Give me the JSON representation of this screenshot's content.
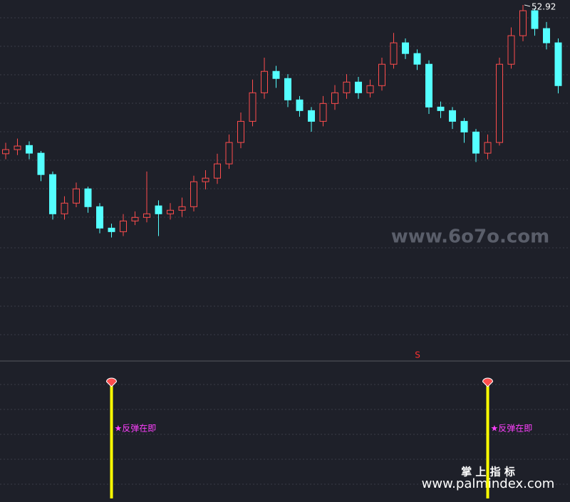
{
  "chart_data": {
    "type": "candlestick",
    "candles": [
      [
        47.5,
        47.9,
        47.3,
        47.65
      ],
      [
        47.65,
        48.05,
        47.45,
        47.78
      ],
      [
        47.8,
        47.95,
        47.3,
        47.52
      ],
      [
        47.52,
        47.6,
        46.5,
        46.74
      ],
      [
        46.74,
        46.85,
        45.1,
        45.31
      ],
      [
        45.31,
        45.95,
        45.1,
        45.7
      ],
      [
        45.7,
        46.45,
        45.55,
        46.22
      ],
      [
        46.22,
        46.3,
        45.35,
        45.57
      ],
      [
        45.57,
        45.7,
        44.6,
        44.79
      ],
      [
        44.79,
        44.95,
        44.45,
        44.66
      ],
      [
        44.66,
        45.3,
        44.5,
        45.05
      ],
      [
        45.05,
        45.4,
        44.9,
        45.18
      ],
      [
        45.18,
        46.85,
        45.0,
        45.31
      ],
      [
        45.6,
        45.8,
        44.5,
        45.31
      ],
      [
        45.31,
        45.7,
        45.1,
        45.44
      ],
      [
        45.44,
        45.9,
        45.2,
        45.57
      ],
      [
        45.57,
        46.7,
        45.4,
        46.48
      ],
      [
        46.48,
        46.9,
        46.2,
        46.61
      ],
      [
        46.61,
        47.5,
        46.4,
        47.13
      ],
      [
        47.13,
        48.2,
        46.95,
        47.91
      ],
      [
        47.91,
        49.0,
        47.7,
        48.68
      ],
      [
        48.68,
        50.2,
        48.5,
        49.72
      ],
      [
        49.72,
        51.0,
        49.5,
        50.5
      ],
      [
        50.5,
        50.7,
        49.9,
        50.24
      ],
      [
        50.24,
        50.4,
        49.2,
        49.46
      ],
      [
        49.46,
        49.6,
        48.85,
        49.07
      ],
      [
        49.07,
        49.2,
        48.3,
        48.68
      ],
      [
        48.68,
        49.6,
        48.5,
        49.33
      ],
      [
        49.33,
        50.0,
        49.1,
        49.72
      ],
      [
        49.72,
        50.4,
        49.5,
        50.11
      ],
      [
        50.11,
        50.3,
        49.5,
        49.72
      ],
      [
        49.72,
        50.2,
        49.55,
        49.98
      ],
      [
        49.98,
        51.0,
        49.8,
        50.76
      ],
      [
        50.76,
        51.9,
        50.6,
        51.54
      ],
      [
        51.54,
        51.7,
        50.95,
        51.15
      ],
      [
        51.15,
        51.3,
        50.55,
        50.76
      ],
      [
        50.76,
        50.9,
        48.95,
        49.2
      ],
      [
        49.2,
        49.4,
        48.8,
        49.07
      ],
      [
        49.07,
        49.2,
        48.4,
        48.68
      ],
      [
        48.68,
        48.8,
        47.9,
        48.29
      ],
      [
        48.29,
        48.4,
        47.2,
        47.52
      ],
      [
        47.52,
        48.2,
        47.3,
        47.91
      ],
      [
        47.91,
        51.0,
        47.8,
        50.76
      ],
      [
        50.76,
        52.1,
        50.6,
        51.8
      ],
      [
        51.8,
        52.92,
        51.6,
        52.71
      ],
      [
        52.71,
        52.8,
        51.8,
        52.06
      ],
      [
        52.06,
        52.3,
        51.3,
        51.54
      ],
      [
        51.54,
        51.7,
        49.7,
        49.98
      ]
    ],
    "ylim": [
      40,
      53.1
    ],
    "up_color": "#ff4d4d",
    "down_color": "#54ffff",
    "marker_text": "S",
    "signals": [
      {
        "index": 9,
        "label": "★反弹在即"
      },
      {
        "index": 41,
        "label": "★反弹在即"
      }
    ],
    "signal_color": "#ffff00"
  },
  "watermarks": [
    "www.6o7o.com",
    "掌 上 指 标",
    "www.palmindex.com"
  ]
}
